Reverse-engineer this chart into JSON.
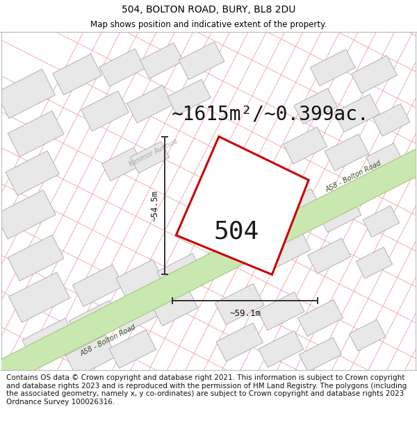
{
  "title": "504, BOLTON ROAD, BURY, BL8 2DU",
  "subtitle": "Map shows position and indicative extent of the property.",
  "area_text": "~1615m²/~0.399ac.",
  "property_number": "504",
  "dim_width": "~59.1m",
  "dim_height": "~54.5m",
  "footer_text": "Contains OS data © Crown copyright and database right 2021. This information is subject to Crown copyright and database rights 2023 and is reproduced with the permission of HM Land Registry. The polygons (including the associated geometry, namely x, y co-ordinates) are subject to Crown copyright and database rights 2023 Ordnance Survey 100026316.",
  "map_bg": "#ffffff",
  "block_fill": "#e8e8e8",
  "block_outline": "#b0b0b0",
  "road_fill": "#c8e8b0",
  "road_outline": "#a0c880",
  "road_label_color": "#3a5028",
  "street_line_color": "#f0a0a0",
  "kenmor_label_color": "#aaaaaa",
  "property_outline": "#cc0000",
  "property_fill": "none",
  "dim_line_color": "#303030",
  "title_fontsize": 10,
  "subtitle_fontsize": 8.5,
  "area_fontsize": 20,
  "number_fontsize": 26,
  "footer_fontsize": 7.5,
  "figsize": [
    6.0,
    6.25
  ],
  "dpi": 100
}
